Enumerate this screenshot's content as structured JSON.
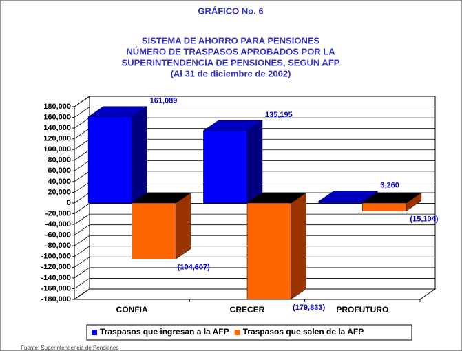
{
  "chart_data": {
    "type": "bar3d",
    "title": "GRÁFICO No. 6",
    "subtitle": [
      "SISTEMA DE AHORRO PARA PENSIONES",
      "NÚMERO DE TRASPASOS APROBADOS POR LA",
      "SUPERINTENDENCIA DE PENSIONES, SEGUN AFP",
      "(Al 31 de diciembre de 2002)"
    ],
    "categories": [
      "CONFIA",
      "CRECER",
      "PROFUTURO"
    ],
    "series": [
      {
        "name": "Traspasos que ingresan a la AFP",
        "color": "#0000ff",
        "side_color": "#000080",
        "top_color": "#0000c0",
        "values": [
          161089,
          135195,
          3260
        ],
        "value_labels": [
          "161,089",
          "135,195",
          "3,260"
        ]
      },
      {
        "name": "Traspasos que salen de la AFP",
        "color": "#ff6600",
        "side_color": "#993300",
        "top_color": "#000000",
        "values": [
          -104607,
          -179833,
          -15104
        ],
        "value_labels": [
          "(104,607)",
          "(179,833)",
          "(15,104)"
        ]
      }
    ],
    "ylim": [
      -180000,
      180000
    ],
    "yticks": [
      {
        "value": -180000,
        "label": "-180,000"
      },
      {
        "value": -160000,
        "label": "-160,000"
      },
      {
        "value": -140000,
        "label": "-140,000"
      },
      {
        "value": -120000,
        "label": "-120,000"
      },
      {
        "value": -100000,
        "label": "-100,000"
      },
      {
        "value": -80000,
        "label": "-80,000"
      },
      {
        "value": -60000,
        "label": "-60,000"
      },
      {
        "value": -40000,
        "label": "-40,000"
      },
      {
        "value": -20000,
        "label": "-20,000"
      },
      0,
      {
        "value": 20000,
        "label": "20,000"
      },
      {
        "value": 40000,
        "label": "40,000"
      },
      {
        "value": 60000,
        "label": "60,000"
      },
      {
        "value": 80000,
        "label": "80,000"
      },
      {
        "value": 100000,
        "label": "100,000"
      },
      {
        "value": 120000,
        "label": "120,000"
      },
      {
        "value": 140000,
        "label": "140,000"
      },
      {
        "value": 160000,
        "label": "160,000"
      },
      {
        "value": 180000,
        "label": "180,000"
      }
    ],
    "grid": true,
    "source": "Fuente: Superintendencia de Pensiones"
  }
}
